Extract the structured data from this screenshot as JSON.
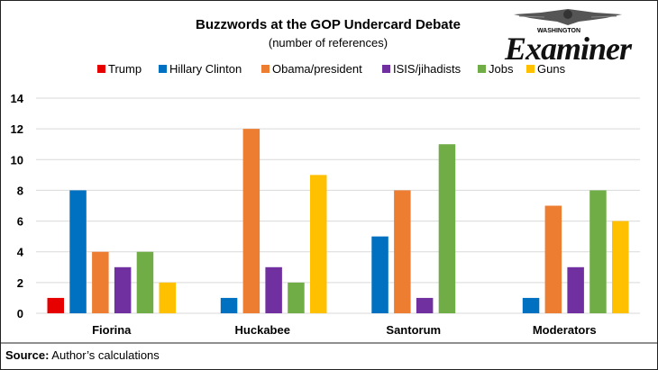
{
  "brand": {
    "top": "WASHINGTON",
    "name": "Examiner"
  },
  "chart_data": {
    "type": "bar",
    "title": "Buzzwords at the GOP Undercard Debate",
    "subtitle": "(number of references)",
    "categories": [
      "Fiorina",
      "Huckabee",
      "Santorum",
      "Moderators"
    ],
    "series": [
      {
        "name": "Trump",
        "color": "#e60000",
        "values": [
          1,
          0,
          0,
          0
        ]
      },
      {
        "name": "Hillary Clinton",
        "color": "#0070c0",
        "values": [
          8,
          1,
          5,
          1
        ]
      },
      {
        "name": "Obama/president",
        "color": "#ed7d31",
        "values": [
          4,
          12,
          8,
          7
        ]
      },
      {
        "name": "ISIS/jihadists",
        "color": "#7030a0",
        "values": [
          3,
          3,
          1,
          3
        ]
      },
      {
        "name": "Jobs",
        "color": "#70ad47",
        "values": [
          4,
          2,
          11,
          8
        ]
      },
      {
        "name": "Guns",
        "color": "#ffc000",
        "values": [
          2,
          9,
          0,
          6
        ]
      }
    ],
    "ylim": [
      0,
      14
    ],
    "yticks": [
      0,
      2,
      4,
      6,
      8,
      10,
      12,
      14
    ],
    "grid": true,
    "legend": "top",
    "source_label": "Source:",
    "source_text": " Author’s calculations"
  }
}
